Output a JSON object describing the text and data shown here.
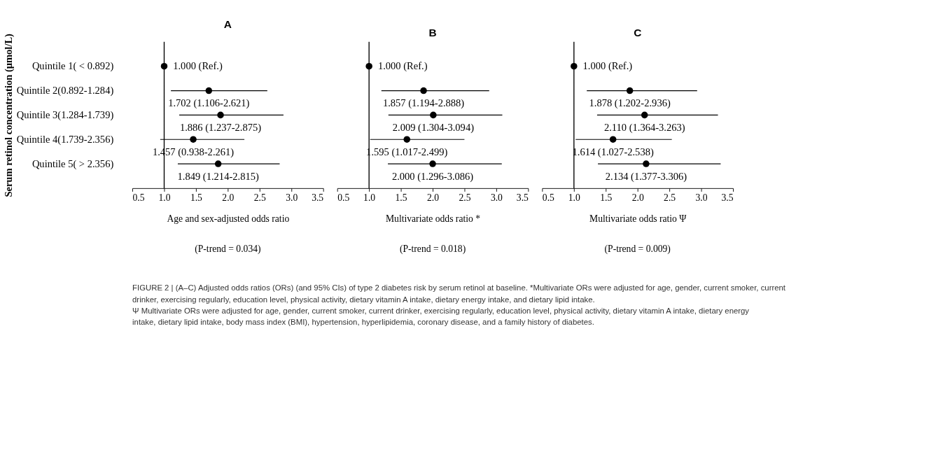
{
  "chart_data": [
    {
      "type": "scatter",
      "orientation": "horizontal",
      "title": "A",
      "ylabel": "Serum retinol concentration (μmol/L)",
      "xlabel": "Age and sex-adjusted odds ratio",
      "categories": [
        "Quintile 1( < 0.892)",
        "Quintile 2(0.892-1.284)",
        "Quintile 3(1.284-1.739)",
        "Quintile 4(1.739-2.356)",
        "Quintile 5( > 2.356)"
      ],
      "values": [
        1.0,
        1.702,
        1.886,
        1.457,
        1.849
      ],
      "errors": [
        null,
        [
          1.106,
          2.621
        ],
        [
          1.237,
          2.875
        ],
        [
          0.938,
          2.261
        ],
        [
          1.214,
          2.815
        ]
      ],
      "value_labels": [
        "1.000 (Ref.)",
        "1.702 (1.106-2.621)",
        "1.886 (1.237-2.875)",
        "1.457 (0.938-2.261)",
        "1.849 (1.214-2.815)"
      ],
      "xlim": [
        0.5,
        3.5
      ],
      "xticks": [
        0.5,
        {
          "value": 1,
          "label": "1.0"
        },
        1.5,
        {
          "value": 2,
          "label": "2.0"
        },
        2.5,
        {
          "value": 3,
          "label": "3.0"
        },
        3.5
      ],
      "marker": "circle",
      "ref_lines": [
        {
          "axis": "x",
          "value": 1.0
        }
      ],
      "annotations": [
        "(P-trend = 0.034)"
      ]
    },
    {
      "type": "scatter",
      "orientation": "horizontal",
      "title": "B",
      "xlabel": "Multivariate odds ratio *",
      "tick_labels": "x",
      "values": [
        1.0,
        1.857,
        2.009,
        1.595,
        2.0
      ],
      "errors": [
        null,
        [
          1.194,
          2.888
        ],
        [
          1.304,
          3.094
        ],
        [
          1.017,
          2.499
        ],
        [
          1.296,
          3.086
        ]
      ],
      "value_labels": [
        "1.000 (Ref.)",
        "1.857 (1.194-2.888)",
        "2.009 (1.304-3.094)",
        "1.595 (1.017-2.499)",
        "2.000 (1.296-3.086)"
      ],
      "xlim": [
        0.5,
        3.5
      ],
      "xticks": [
        0.5,
        {
          "value": 1,
          "label": "1.0"
        },
        1.5,
        {
          "value": 2,
          "label": "2.0"
        },
        2.5,
        {
          "value": 3,
          "label": "3.0"
        },
        3.5
      ],
      "marker": "circle",
      "ref_lines": [
        {
          "axis": "x",
          "value": 1.0
        }
      ],
      "annotations": [
        "(P-trend = 0.018)"
      ]
    },
    {
      "type": "scatter",
      "orientation": "horizontal",
      "title": "C",
      "xlabel": "Multivariate odds ratio Ψ",
      "tick_labels": "x",
      "values": [
        1.0,
        1.878,
        2.11,
        1.614,
        2.134
      ],
      "errors": [
        null,
        [
          1.202,
          2.936
        ],
        [
          1.364,
          3.263
        ],
        [
          1.027,
          2.538
        ],
        [
          1.377,
          3.306
        ]
      ],
      "value_labels": [
        "1.000 (Ref.)",
        "1.878 (1.202-2.936)",
        "2.110 (1.364-3.263)",
        "1.614 (1.027-2.538)",
        "2.134 (1.377-3.306)"
      ],
      "xlim": [
        0.5,
        3.5
      ],
      "xticks": [
        0.5,
        {
          "value": 1,
          "label": "1.0"
        },
        1.5,
        {
          "value": 2,
          "label": "2.0"
        },
        2.5,
        {
          "value": 3,
          "label": "3.0"
        },
        3.5
      ],
      "marker": "circle",
      "ref_lines": [
        {
          "axis": "x",
          "value": 1.0
        }
      ],
      "annotations": [
        "(P-trend = 0.009)"
      ]
    },
    {
      "type": "other",
      "annotations": [
        "FIGURE 2 | (A–C) Adjusted odds ratios (ORs) (and 95% CIs) of type 2 diabetes risk by serum retinol at baseline. *Multivariate ORs were adjusted for age, gender, current smoker, current drinker, exercising regularly, education level, physical activity, dietary vitamin A intake, dietary energy intake, and dietary lipid intake.",
        "Ψ Multivariate ORs were adjusted for age, gender, current smoker, current drinker, exercising regularly, education level, physical activity, dietary vitamin A intake, dietary energy intake, dietary lipid intake, body mass index (BMI), hypertension, hyperlipidemia, coronary disease, and a family history of diabetes."
      ]
    }
  ]
}
